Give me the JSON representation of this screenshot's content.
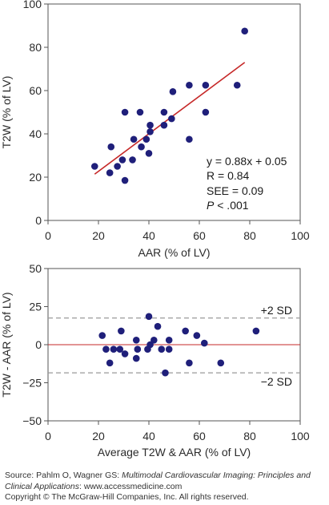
{
  "chart_data": [
    {
      "type": "scatter",
      "xlabel": "AAR (% of LV)",
      "ylabel": "T2W (% of LV)",
      "xlim": [
        0,
        100
      ],
      "ylim": [
        0,
        100
      ],
      "xticks": [
        0,
        20,
        40,
        60,
        80,
        100
      ],
      "yticks": [
        0,
        20,
        40,
        60,
        80,
        100
      ],
      "points": [
        [
          18.5,
          25
        ],
        [
          24.5,
          22
        ],
        [
          25,
          34
        ],
        [
          27.5,
          25
        ],
        [
          29.5,
          28
        ],
        [
          30.5,
          18.5
        ],
        [
          30.5,
          50
        ],
        [
          33.5,
          28
        ],
        [
          34,
          37.5
        ],
        [
          36.5,
          50
        ],
        [
          37,
          34
        ],
        [
          39,
          37.5
        ],
        [
          40,
          31
        ],
        [
          40.5,
          44
        ],
        [
          40.5,
          41
        ],
        [
          46,
          50
        ],
        [
          46,
          44
        ],
        [
          49,
          47
        ],
        [
          49.5,
          59.5
        ],
        [
          56,
          37.5
        ],
        [
          56,
          62.5
        ],
        [
          62.5,
          62.5
        ],
        [
          62.5,
          50
        ],
        [
          75,
          62.5
        ],
        [
          78,
          87.5
        ]
      ],
      "fit_line": {
        "x": [
          18.5,
          78
        ],
        "y": [
          21.4,
          73
        ]
      },
      "annotations": {
        "equation": "y = 0.88x + 0.05",
        "r": "R = 0.84",
        "see": "SEE = 0.09",
        "p_symbol": "P",
        "p_value": " < .001"
      },
      "point_color": "#1f1f7a",
      "line_color": "#c62828",
      "grid": false
    },
    {
      "type": "scatter",
      "xlabel": "Average T2W & AAR (% of LV)",
      "ylabel": "T2W - AAR (% of LV)",
      "xlim": [
        0,
        100
      ],
      "ylim": [
        -50,
        50
      ],
      "xticks": [
        0,
        20,
        40,
        60,
        80,
        100
      ],
      "yticks": [
        -50,
        -25,
        0,
        25,
        50
      ],
      "points": [
        [
          21.5,
          6
        ],
        [
          23,
          -3
        ],
        [
          24.5,
          -12
        ],
        [
          26,
          -3
        ],
        [
          28.5,
          -3
        ],
        [
          29,
          9
        ],
        [
          30.5,
          -6
        ],
        [
          35,
          3
        ],
        [
          35,
          -9
        ],
        [
          35.5,
          -3
        ],
        [
          39.5,
          -3
        ],
        [
          40,
          18.5
        ],
        [
          40.5,
          0
        ],
        [
          42,
          3
        ],
        [
          43.5,
          12
        ],
        [
          45,
          -3
        ],
        [
          46.5,
          -18.5
        ],
        [
          48,
          3
        ],
        [
          48,
          -3
        ],
        [
          54.5,
          9
        ],
        [
          56,
          -12
        ],
        [
          59,
          6
        ],
        [
          62,
          1
        ],
        [
          68.5,
          -12
        ],
        [
          82.5,
          9
        ]
      ],
      "mean_line": {
        "y": 0,
        "color": "#c62828"
      },
      "sd_lines": [
        {
          "y": 17.5,
          "label": "+2 SD"
        },
        {
          "y": -18.5,
          "label": "−2 SD"
        }
      ],
      "point_color": "#1f1f7a",
      "grid": false
    }
  ],
  "footer": {
    "source_prefix": "Source: Pahlm O, Wagner GS: ",
    "source_title": "Multimodal Cardiovascular Imaging: Principles and Clinical Applications",
    "source_suffix": ": www.accessmedicine.com",
    "copyright": "Copyright © The McGraw-Hill Companies, Inc. All rights reserved."
  }
}
